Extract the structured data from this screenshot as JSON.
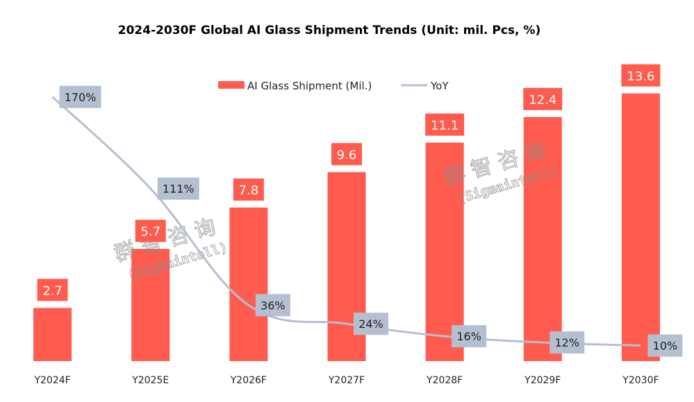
{
  "chart_data": {
    "type": "bar",
    "title": "2024-2030F Global AI Glass Shipment Trends (Unit: mil. Pcs, %)",
    "xlabel": "",
    "ylabel": "",
    "categories": [
      "Y2024F",
      "Y2025E",
      "Y2026F",
      "Y2027F",
      "Y2028F",
      "Y2029F",
      "Y2030F"
    ],
    "series": [
      {
        "name": "AI Glass Shipment (Mil.)",
        "type": "bar",
        "axis": "primary",
        "color": "#FF5B4F",
        "values": [
          2.7,
          5.7,
          7.8,
          9.6,
          11.1,
          12.4,
          13.6
        ],
        "labels": [
          "2.7",
          "5.7",
          "7.8",
          "9.6",
          "11.1",
          "12.4",
          "13.6"
        ]
      },
      {
        "name": "YoY",
        "type": "line",
        "axis": "secondary",
        "color": "#B4BFD0",
        "smooth": true,
        "values": [
          170,
          111,
          36,
          24,
          16,
          12,
          10
        ],
        "labels": [
          "170%",
          "111%",
          "36%",
          "24%",
          "16%",
          "12%",
          "10%"
        ]
      }
    ],
    "ylim": [
      0,
      15
    ],
    "y2lim": [
      0,
      190
    ],
    "grid": false,
    "axes_visible": false,
    "legend": {
      "position": "top-center",
      "entries": [
        "AI Glass Shipment (Mil.)",
        "YoY"
      ]
    },
    "watermark": {
      "text": "群智咨询",
      "subtext": "(Sigmaintell)"
    }
  }
}
